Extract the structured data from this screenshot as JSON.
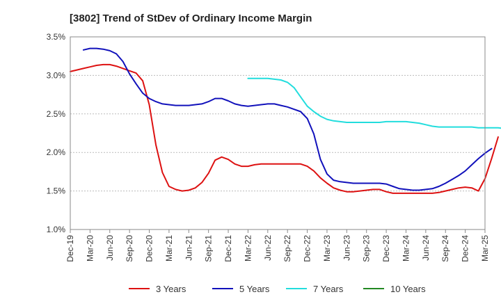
{
  "chart_data": {
    "type": "line",
    "title": "[3802]  Trend of StDev of Ordinary Income Margin",
    "xlabel": "",
    "ylabel": "",
    "ylim": [
      1.0,
      3.5
    ],
    "yticks": [
      "1.0%",
      "1.5%",
      "2.0%",
      "2.5%",
      "3.0%",
      "3.5%"
    ],
    "ytick_values": [
      1.0,
      1.5,
      2.0,
      2.5,
      3.0,
      3.5
    ],
    "x_ticks": [
      "Dec-19",
      "Mar-20",
      "Jun-20",
      "Sep-20",
      "Dec-20",
      "Mar-21",
      "Jun-21",
      "Sep-21",
      "Dec-21",
      "Mar-22",
      "Jun-22",
      "Sep-22",
      "Dec-22",
      "Mar-23",
      "Jun-23",
      "Sep-23",
      "Dec-23",
      "Mar-24",
      "Jun-24",
      "Sep-24",
      "Dec-24",
      "Mar-25"
    ],
    "grid": "horizontal",
    "legend_position": "bottom",
    "series": [
      {
        "name": "3 Years",
        "color": "#dd1111",
        "start_month": 0,
        "values": [
          3.05,
          3.07,
          3.09,
          3.11,
          3.13,
          3.14,
          3.14,
          3.12,
          3.09,
          3.06,
          3.03,
          2.93,
          2.62,
          2.1,
          1.74,
          1.56,
          1.52,
          1.5,
          1.51,
          1.54,
          1.61,
          1.73,
          1.9,
          1.94,
          1.91,
          1.85,
          1.82,
          1.82,
          1.84,
          1.85,
          1.85,
          1.85,
          1.85,
          1.85,
          1.85,
          1.85,
          1.82,
          1.76,
          1.67,
          1.6,
          1.54,
          1.51,
          1.49,
          1.49,
          1.5,
          1.51,
          1.52,
          1.52,
          1.49,
          1.47,
          1.47,
          1.47,
          1.47,
          1.47,
          1.47,
          1.47,
          1.48,
          1.5,
          1.52,
          1.54,
          1.55,
          1.54,
          1.5,
          1.66,
          1.92,
          2.2
        ]
      },
      {
        "name": "5 Years",
        "color": "#1111bb",
        "start_month": 2,
        "values": [
          3.33,
          3.35,
          3.35,
          3.34,
          3.32,
          3.28,
          3.18,
          3.02,
          2.89,
          2.77,
          2.7,
          2.66,
          2.63,
          2.62,
          2.61,
          2.61,
          2.61,
          2.62,
          2.63,
          2.66,
          2.7,
          2.7,
          2.67,
          2.63,
          2.61,
          2.6,
          2.61,
          2.62,
          2.63,
          2.63,
          2.61,
          2.59,
          2.56,
          2.53,
          2.44,
          2.24,
          1.91,
          1.72,
          1.64,
          1.62,
          1.61,
          1.6,
          1.6,
          1.6,
          1.6,
          1.6,
          1.59,
          1.56,
          1.53,
          1.52,
          1.51,
          1.51,
          1.52,
          1.53,
          1.56,
          1.6,
          1.65,
          1.7,
          1.76,
          1.84,
          1.92,
          1.99,
          2.05
        ]
      },
      {
        "name": "7 Years",
        "color": "#22dddd",
        "start_month": 27,
        "values": [
          2.96,
          2.96,
          2.96,
          2.96,
          2.95,
          2.94,
          2.91,
          2.84,
          2.72,
          2.6,
          2.53,
          2.47,
          2.43,
          2.41,
          2.4,
          2.39,
          2.39,
          2.39,
          2.39,
          2.39,
          2.39,
          2.4,
          2.4,
          2.4,
          2.4,
          2.39,
          2.38,
          2.36,
          2.34,
          2.33,
          2.33,
          2.33,
          2.33,
          2.33,
          2.33,
          2.32,
          2.32,
          2.32,
          2.32,
          2.31,
          2.28,
          2.22,
          2.13
        ]
      },
      {
        "name": "10 Years",
        "color": "#228822",
        "start_month": 0,
        "values": []
      }
    ]
  }
}
